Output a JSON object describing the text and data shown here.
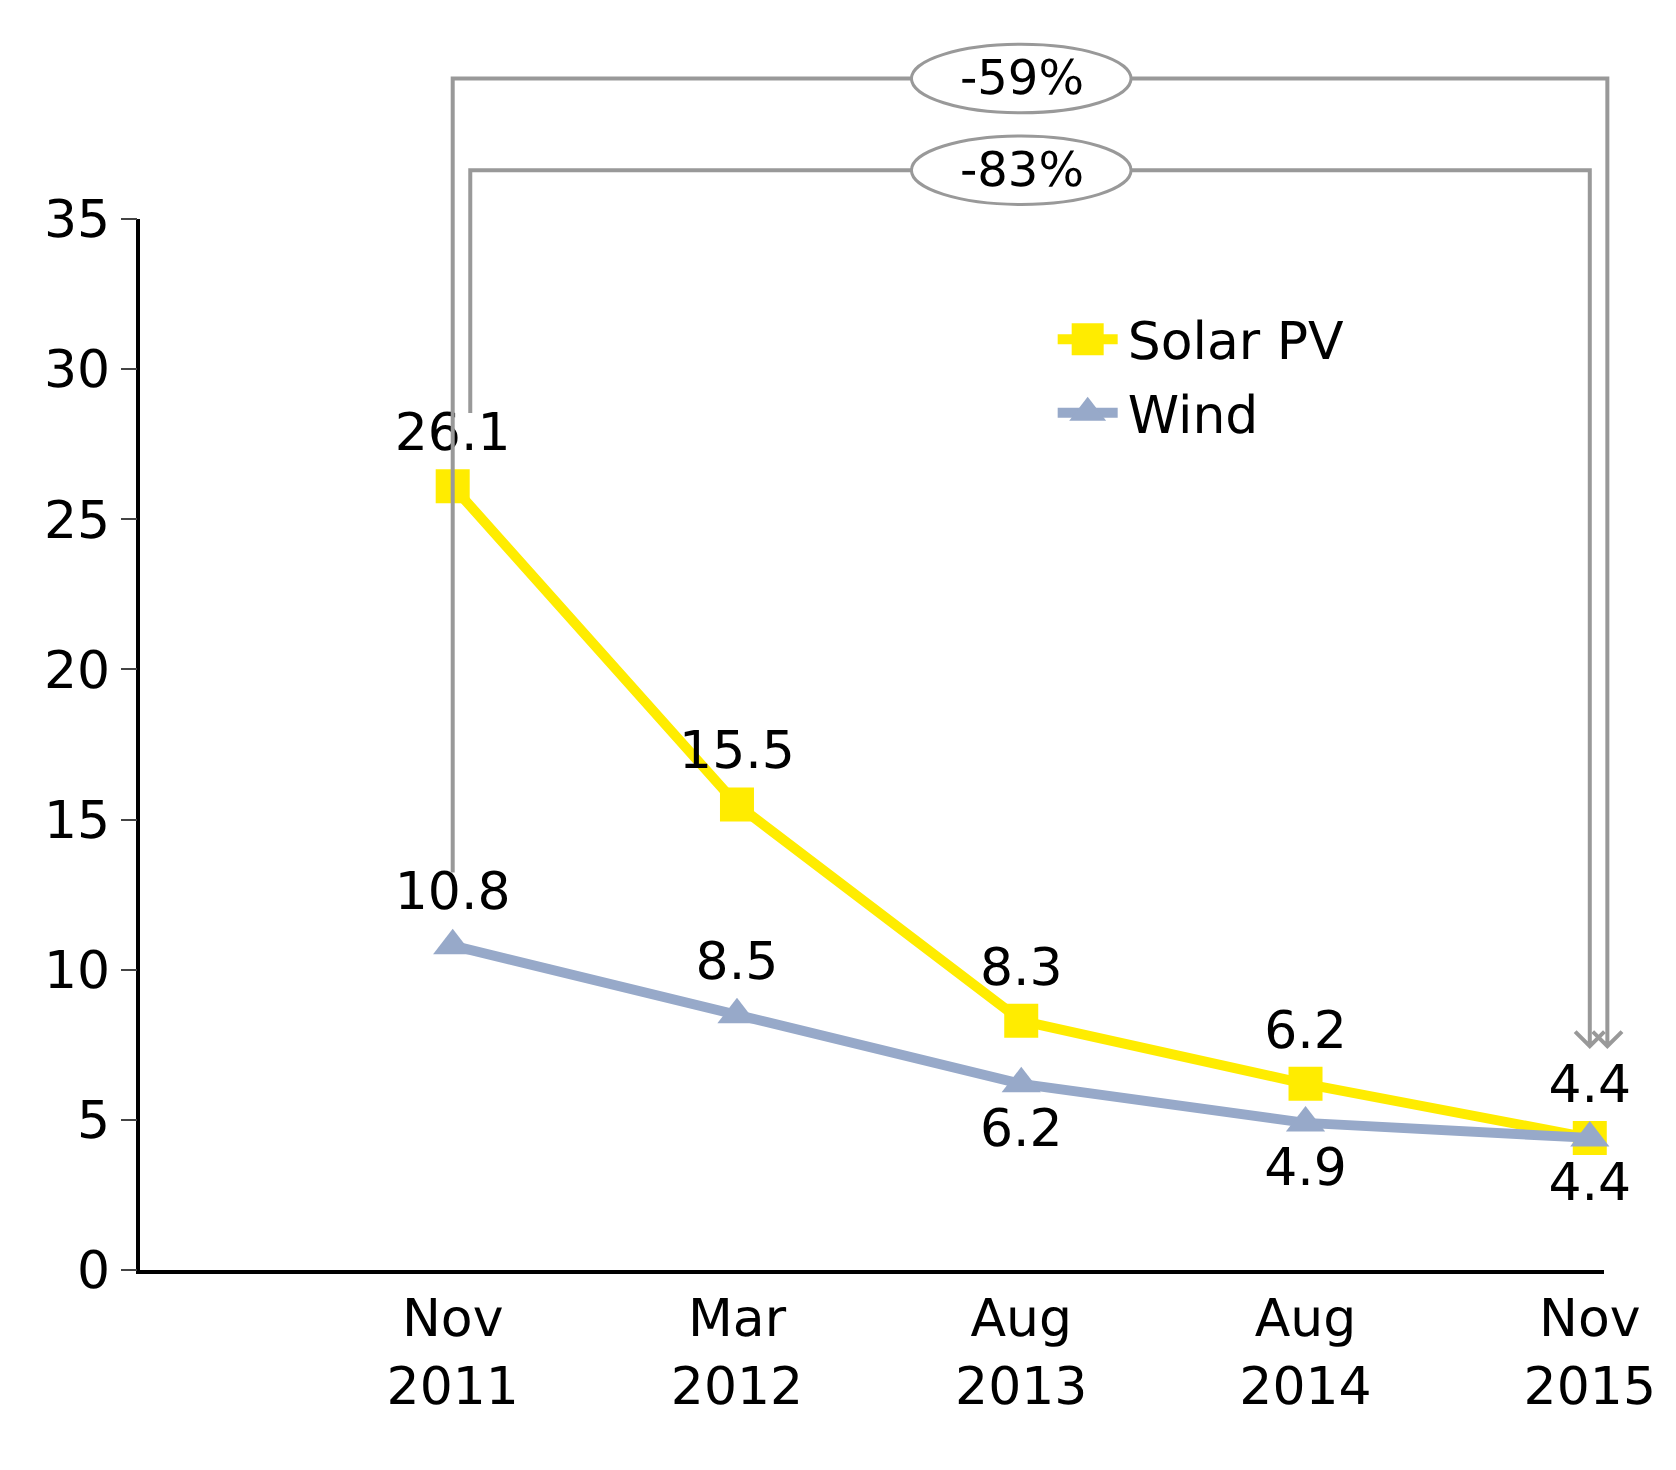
{
  "chart_data": {
    "type": "line",
    "categories": [
      "Nov 2011",
      "Mar 2012",
      "Aug 2013",
      "Aug 2014",
      "Nov 2015"
    ],
    "series": [
      {
        "name": "Solar PV",
        "color": "#ffec00",
        "marker": "square",
        "values": [
          26.1,
          15.5,
          8.3,
          6.2,
          4.4
        ]
      },
      {
        "name": "Wind",
        "color": "#97a9c9",
        "marker": "triangle",
        "values": [
          10.8,
          8.5,
          6.2,
          4.9,
          4.4
        ]
      }
    ],
    "ylim": [
      0,
      35
    ],
    "yticks": [
      0,
      5,
      10,
      15,
      20,
      25,
      30,
      35
    ],
    "data_labels": true,
    "legend": "top right",
    "annotations": [
      "-59%",
      "-83%"
    ]
  }
}
